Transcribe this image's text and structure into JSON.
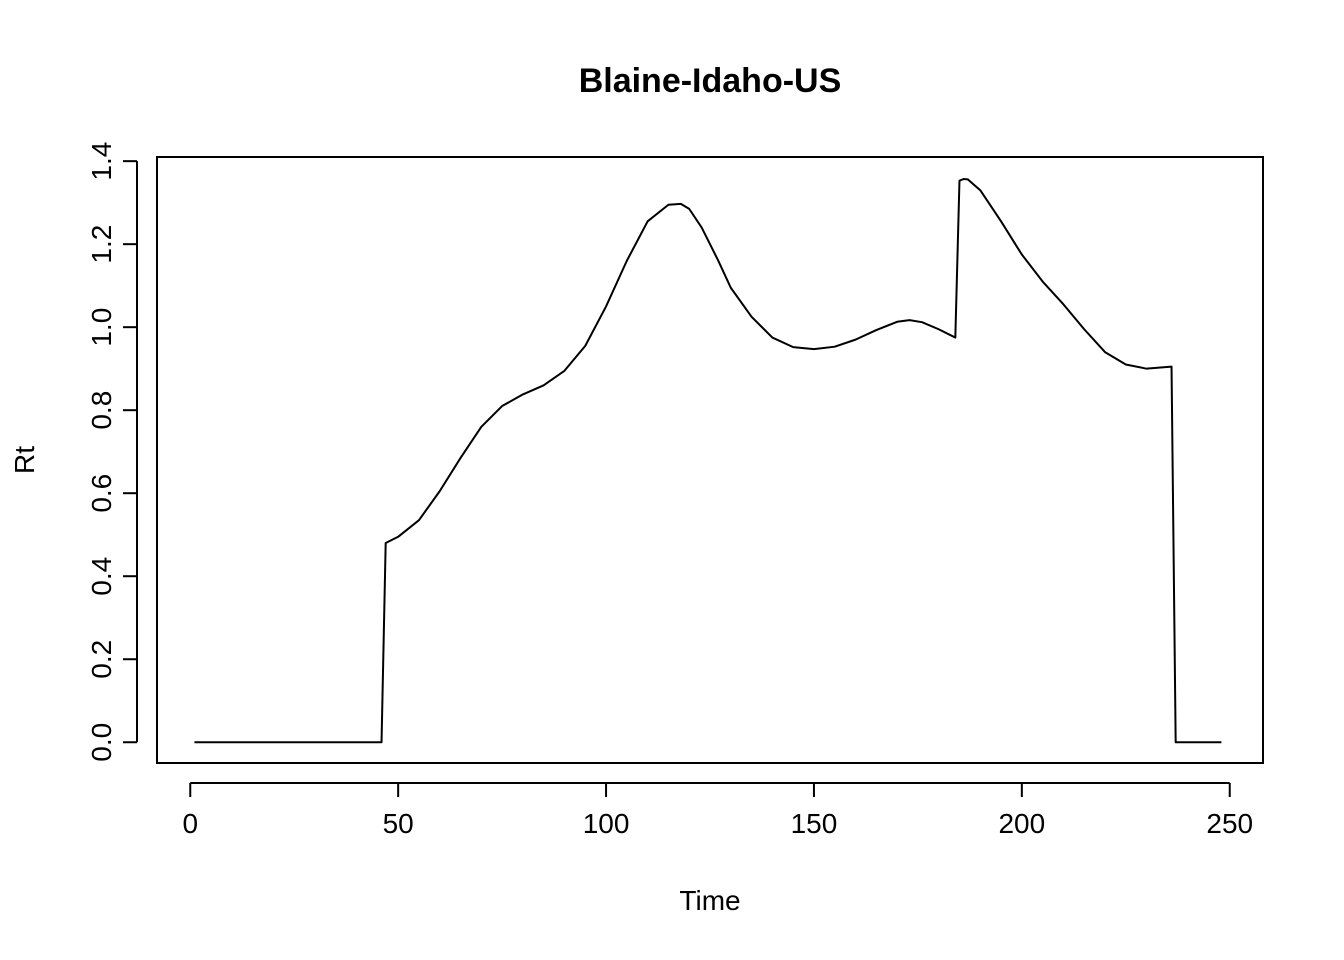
{
  "chart_data": {
    "type": "line",
    "title": "Blaine-Idaho-US",
    "xlabel": "Time",
    "ylabel": "Rt",
    "xlim": [
      -8,
      258
    ],
    "ylim": [
      -0.05,
      1.41
    ],
    "xticks": [
      0,
      50,
      100,
      150,
      200,
      250
    ],
    "xtick_labels": [
      "0",
      "50",
      "100",
      "150",
      "200",
      "250"
    ],
    "yticks": [
      0.0,
      0.2,
      0.4,
      0.6,
      0.8,
      1.0,
      1.2,
      1.4
    ],
    "ytick_labels": [
      "0.0",
      "0.2",
      "0.4",
      "0.6",
      "0.8",
      "1.0",
      "1.2",
      "1.4"
    ],
    "grid": false,
    "line_color": "#000000",
    "series": [
      {
        "x": [
          1,
          10,
          20,
          30,
          40,
          46,
          47,
          50,
          55,
          60,
          65,
          70,
          75,
          80,
          85,
          90,
          95,
          100,
          105,
          110,
          115,
          118,
          120,
          123,
          127,
          130,
          135,
          140,
          145,
          150,
          155,
          160,
          165,
          170,
          173,
          176,
          180,
          184,
          185,
          186,
          187,
          190,
          195,
          200,
          205,
          210,
          215,
          220,
          225,
          230,
          236,
          237,
          240,
          248
        ],
        "y": [
          0,
          0,
          0,
          0,
          0,
          0,
          0.48,
          0.495,
          0.535,
          0.605,
          0.685,
          0.76,
          0.81,
          0.838,
          0.86,
          0.895,
          0.955,
          1.05,
          1.16,
          1.255,
          1.295,
          1.297,
          1.285,
          1.24,
          1.16,
          1.095,
          1.025,
          0.975,
          0.952,
          0.947,
          0.953,
          0.97,
          0.993,
          1.013,
          1.017,
          1.012,
          0.995,
          0.975,
          1.353,
          1.357,
          1.356,
          1.33,
          1.255,
          1.175,
          1.11,
          1.055,
          0.995,
          0.94,
          0.91,
          0.9,
          0.905,
          0,
          0,
          0
        ]
      }
    ]
  }
}
